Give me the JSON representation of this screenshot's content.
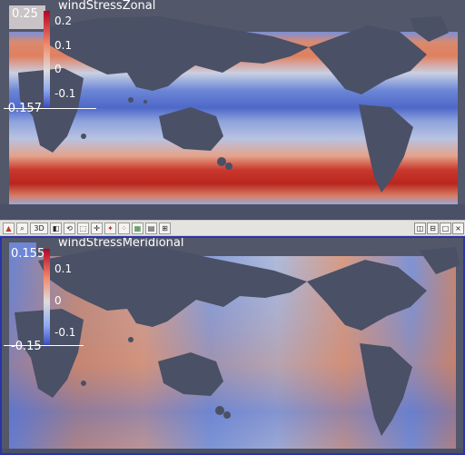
{
  "top_view": {
    "title": "windStressZonal",
    "range_max": "0.25",
    "range_min": "-0.157",
    "ticks": [
      "0.2",
      "0.1",
      "0",
      "-0.1"
    ]
  },
  "bottom_view": {
    "title": "windStressMeridional",
    "range_max": "0.155",
    "range_min": "-0.15",
    "ticks": [
      "0.1",
      "0",
      "-0.1"
    ]
  },
  "toolbar": {
    "buttons": [
      "split-view-icon",
      "zoom-icon",
      "3D",
      "camera-icon",
      "reset-camera-icon",
      "select-icon",
      "pick-icon",
      "interact-icon",
      "select-points-icon",
      "select-cells-icon",
      "grid-icon"
    ],
    "view_3d_label": "3D",
    "window_controls": [
      "split-horizontal-icon",
      "split-vertical-icon",
      "maximize-icon",
      "close-icon"
    ],
    "close_label": "×"
  },
  "colors": {
    "background": "#525769",
    "land": "#4a5065",
    "colormap_high": "#b51e1e",
    "colormap_mid": "#dcdcdc",
    "colormap_low": "#3a4cc0",
    "active_border": "#2a34a8"
  }
}
